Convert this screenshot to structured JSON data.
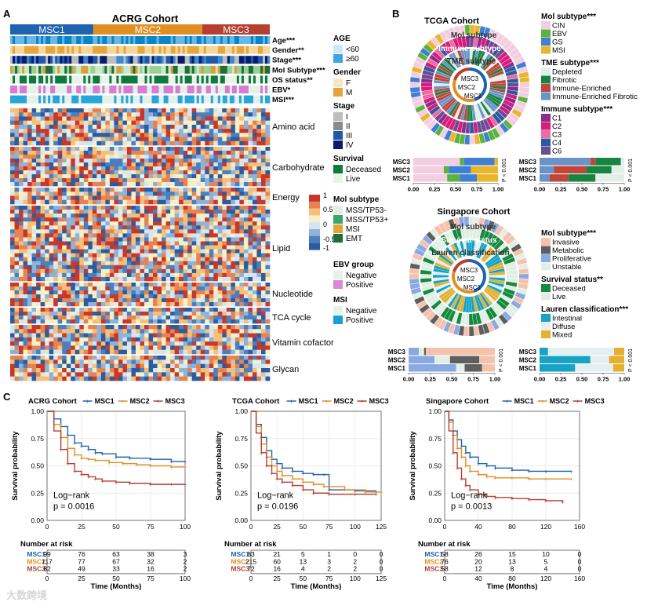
{
  "panels": {
    "a": "A",
    "b": "B",
    "c": "C"
  },
  "acrg": {
    "title": "ACRG Cohort",
    "clusters": [
      {
        "label": "MSC1",
        "share": 0.32,
        "color": "#1f62ad"
      },
      {
        "label": "MSC2",
        "share": 0.42,
        "color": "#e18f23"
      },
      {
        "label": "MSC3",
        "share": 0.26,
        "color": "#b73f2f"
      }
    ],
    "tracks": [
      {
        "label": "Age***",
        "colors": [
          "#0b84c6",
          "#69b7e6"
        ]
      },
      {
        "label": "Gender**",
        "colors": [
          "#f6d79b",
          "#e6a63a"
        ]
      },
      {
        "label": "Stage***",
        "colors": [
          "#bdbdbd",
          "#3b8ad0",
          "#1f5aa8",
          "#0a1a6b"
        ]
      },
      {
        "label": "Mol Subtype***",
        "colors": [
          "#cbe9c5",
          "#9bcf93",
          "#d8a03a",
          "#1f6e3a"
        ]
      },
      {
        "label": "OS status**",
        "colors": [
          "#0d7a3e",
          "#e8f4e7"
        ]
      },
      {
        "label": "EBV*",
        "colors": [
          "#e3f1e8",
          "#d87bd2"
        ]
      },
      {
        "label": "MSI***",
        "colors": [
          "#e3f1e8",
          "#27a6d9"
        ]
      }
    ],
    "blocks": [
      "Amino acid",
      "Carbohydrate",
      "Energy",
      "Lipid",
      "Nucleotide",
      "TCA cycle",
      "Vitamin cofactor",
      "Glycan"
    ],
    "scale": {
      "max": "1",
      "a": "0.5",
      "b": "0",
      "c": "-0.5",
      "min": "-1"
    },
    "legends": [
      {
        "title": "AGE",
        "items": [
          {
            "label": "<60",
            "color": "#cfe8f6"
          },
          {
            "label": "≥60",
            "color": "#3aa5e2"
          }
        ]
      },
      {
        "title": "Gender",
        "items": [
          {
            "label": "F",
            "color": "#f7e6c2"
          },
          {
            "label": "M",
            "color": "#e5a43a"
          }
        ]
      },
      {
        "title": "Stage",
        "items": [
          {
            "label": "I",
            "color": "#bdbdbd"
          },
          {
            "label": "II",
            "color": "#8a8a8a"
          },
          {
            "label": "III",
            "color": "#1f5aa8"
          },
          {
            "label": "IV",
            "color": "#0a1a6b"
          }
        ]
      },
      {
        "title": "Survival",
        "items": [
          {
            "label": "Deceased",
            "color": "#0d7a3e"
          },
          {
            "label": "Live",
            "color": "#e8f4e7"
          }
        ]
      },
      {
        "title": "Mol subtype",
        "items": [
          {
            "label": "MSS/TP53-",
            "color": "#dff0dc"
          },
          {
            "label": "MSS/TP53+",
            "color": "#3da56a"
          },
          {
            "label": "MSI",
            "color": "#e0a534"
          },
          {
            "label": "EMT",
            "color": "#1f6e3a"
          }
        ]
      },
      {
        "title": "EBV group",
        "items": [
          {
            "label": "Negative",
            "color": "#e6f2e6"
          },
          {
            "label": "Positive",
            "color": "#d98ad6"
          }
        ]
      },
      {
        "title": "MSI",
        "items": [
          {
            "label": "Negative",
            "color": "#e6f2e6"
          },
          {
            "label": "Positive",
            "color": "#1aa0d8"
          }
        ]
      }
    ]
  },
  "tcga": {
    "title": "TCGA Cohort",
    "ring_labels": [
      "Mol subtype",
      "Immune subtype",
      "TME subtype"
    ],
    "inner_labels": [
      "MSC3",
      "MSC2",
      "MSC1"
    ],
    "legends": [
      {
        "title": "Mol subtype***",
        "items": [
          {
            "label": "CIN",
            "color": "#f4cde0"
          },
          {
            "label": "EBV",
            "color": "#5ab33e"
          },
          {
            "label": "GS",
            "color": "#3f7fd6"
          },
          {
            "label": "MSI",
            "color": "#e9b52d"
          }
        ]
      },
      {
        "title": "TME subtype***",
        "items": [
          {
            "label": "Depleted",
            "color": "#e1efe6"
          },
          {
            "label": "Fibrotic",
            "color": "#17853f"
          },
          {
            "label": "Immune-Enriched",
            "color": "#c0453b"
          },
          {
            "label": "Immune-Enriched Fibrotic",
            "color": "#6c93c7"
          }
        ]
      },
      {
        "title": "Immune subtype***",
        "items": [
          {
            "label": "C1",
            "color": "#8b2d8f"
          },
          {
            "label": "C2",
            "color": "#d61d7c"
          },
          {
            "label": "C3",
            "color": "#ef6aa0"
          },
          {
            "label": "C4",
            "color": "#2b5aa0"
          },
          {
            "label": "C6",
            "color": "#6a4c93"
          }
        ]
      }
    ],
    "bars_left": {
      "rows": [
        "MSC3",
        "MSC2",
        "MSC1"
      ],
      "ticks": [
        "0.00",
        "0.25",
        "0.50",
        "0.75",
        "1.00"
      ],
      "p": "P < 0.001",
      "series": [
        {
          "name": "CIN",
          "color": "#f4cde0",
          "values": [
            0.55,
            0.36,
            0.4
          ]
        },
        {
          "name": "EBV",
          "color": "#5ab33e",
          "values": [
            0.05,
            0.06,
            0.15
          ]
        },
        {
          "name": "GS",
          "color": "#3f7fd6",
          "values": [
            0.36,
            0.26,
            0.2
          ]
        },
        {
          "name": "MSI",
          "color": "#e9b52d",
          "values": [
            0.04,
            0.32,
            0.25
          ]
        }
      ]
    },
    "bars_right": {
      "rows": [
        "MSC3",
        "MSC2",
        "MSC1"
      ],
      "ticks": [
        "0.00",
        "0.25",
        "0.50",
        "0.75",
        "1.00"
      ],
      "p": "P < 0.001",
      "series": [
        {
          "name": "Immune-Enriched Fibrotic",
          "color": "#6c93c7",
          "values": [
            0.6,
            0.17,
            0.12
          ]
        },
        {
          "name": "Immune-Enriched",
          "color": "#c0453b",
          "values": [
            0.06,
            0.38,
            0.22
          ]
        },
        {
          "name": "Fibrotic",
          "color": "#17853f",
          "values": [
            0.3,
            0.3,
            0.32
          ]
        },
        {
          "name": "Depleted",
          "color": "#e1efe6",
          "values": [
            0.04,
            0.15,
            0.34
          ]
        }
      ]
    }
  },
  "singapore": {
    "title": "Singapore Cohort",
    "ring_labels": [
      "Mol subtype",
      "Survival status",
      "Lauren classification"
    ],
    "inner_labels": [
      "MSC3",
      "MSC2",
      "MSC1"
    ],
    "legends": [
      {
        "title": "Mol subtype***",
        "items": [
          {
            "label": "Invasive",
            "color": "#f6c2ac"
          },
          {
            "label": "Metabolic",
            "color": "#5e5e5e"
          },
          {
            "label": "Proliferative",
            "color": "#8aa9e3"
          },
          {
            "label": "Unstable",
            "color": "#e2efe7"
          }
        ]
      },
      {
        "title": "Survival status**",
        "items": [
          {
            "label": "Deceased",
            "color": "#15893e"
          },
          {
            "label": "Live",
            "color": "#e0efe4"
          }
        ]
      },
      {
        "title": "Lauren classification***",
        "items": [
          {
            "label": "Intestinal",
            "color": "#16a3c4"
          },
          {
            "label": "Diffuse",
            "color": "#e4eff2"
          },
          {
            "label": "Mixed",
            "color": "#e4b02d"
          }
        ]
      }
    ],
    "bars_left": {
      "rows": [
        "MSC3",
        "MSC2",
        "MSC1"
      ],
      "ticks": [
        "0.00",
        "0.25",
        "0.50",
        "0.75",
        "1.00"
      ],
      "p": "P < 0.001",
      "series": [
        {
          "name": "Proliferative",
          "color": "#8aa9e3",
          "values": [
            0.12,
            0.3,
            0.55
          ]
        },
        {
          "name": "Unstable",
          "color": "#e2efe7",
          "values": [
            0.06,
            0.18,
            0.1
          ]
        },
        {
          "name": "Metabolic",
          "color": "#5e5e5e",
          "values": [
            0.02,
            0.34,
            0.2
          ]
        },
        {
          "name": "Invasive",
          "color": "#f6c2ac",
          "values": [
            0.8,
            0.18,
            0.15
          ]
        }
      ]
    },
    "bars_right": {
      "rows": [
        "MSC3",
        "MSC2",
        "MSC1"
      ],
      "ticks": [
        "0.00",
        "0.25",
        "0.50",
        "0.75",
        "1.00"
      ],
      "p": "P < 0.001",
      "series": [
        {
          "name": "Intestinal",
          "color": "#16a3c4",
          "values": [
            0.1,
            0.6,
            0.42
          ]
        },
        {
          "name": "Diffuse",
          "color": "#e4eff2",
          "values": [
            0.78,
            0.22,
            0.45
          ]
        },
        {
          "name": "Mixed",
          "color": "#e4b02d",
          "values": [
            0.12,
            0.18,
            0.13
          ]
        }
      ]
    }
  },
  "chart_data": [
    {
      "type": "line",
      "title": "ACRG Cohort",
      "xlabel": "Time (Months)",
      "ylabel": "Survival probability",
      "xlim": [
        0,
        100
      ],
      "ylim": [
        0,
        1
      ],
      "xticks": [
        "0",
        "25",
        "50",
        "75",
        "100"
      ],
      "yticks": [
        "0.00",
        "0.25",
        "0.50",
        "0.75",
        "1.00"
      ],
      "test": "Log−rank",
      "pvalue": "p = 0.0016",
      "risk_title": "Number at risk",
      "series": [
        {
          "name": "MSC1",
          "color": "#1f62ad",
          "x": [
            0,
            5,
            10,
            15,
            20,
            25,
            30,
            35,
            40,
            50,
            60,
            75,
            90,
            100
          ],
          "y": [
            1,
            0.93,
            0.86,
            0.78,
            0.71,
            0.68,
            0.65,
            0.62,
            0.61,
            0.58,
            0.57,
            0.56,
            0.54,
            0.54
          ],
          "risk": [
            "99",
            "76",
            "63",
            "38",
            "3"
          ]
        },
        {
          "name": "MSC2",
          "color": "#e18f23",
          "x": [
            0,
            5,
            10,
            15,
            20,
            25,
            30,
            35,
            45,
            55,
            65,
            75,
            90,
            100
          ],
          "y": [
            1,
            0.88,
            0.76,
            0.66,
            0.6,
            0.57,
            0.56,
            0.55,
            0.53,
            0.52,
            0.51,
            0.5,
            0.49,
            0.49
          ],
          "risk": [
            "117",
            "77",
            "67",
            "32",
            "2"
          ]
        },
        {
          "name": "MSC3",
          "color": "#b73f2f",
          "x": [
            0,
            5,
            10,
            15,
            20,
            25,
            30,
            35,
            40,
            50,
            60,
            75,
            90,
            100
          ],
          "y": [
            1,
            0.82,
            0.65,
            0.52,
            0.45,
            0.42,
            0.4,
            0.38,
            0.36,
            0.35,
            0.34,
            0.33,
            0.33,
            0.33
          ],
          "risk": [
            "82",
            "49",
            "33",
            "16",
            "2"
          ]
        }
      ],
      "risk_ticks": [
        "0",
        "25",
        "50",
        "75",
        "100"
      ]
    },
    {
      "type": "line",
      "title": "TCGA Cohort",
      "xlabel": "Time (Months)",
      "ylabel": "Survival probability",
      "xlim": [
        0,
        125
      ],
      "ylim": [
        0,
        1
      ],
      "xticks": [
        "0",
        "25",
        "50",
        "75",
        "100",
        "125"
      ],
      "yticks": [
        "0.00",
        "0.25",
        "0.50",
        "0.75",
        "1.00"
      ],
      "test": "Log−rank",
      "pvalue": "p = 0.0196",
      "risk_title": "Number at risk",
      "series": [
        {
          "name": "MSC1",
          "color": "#1f62ad",
          "x": [
            0,
            5,
            10,
            15,
            20,
            25,
            30,
            40,
            50,
            60,
            70,
            75,
            100,
            120
          ],
          "y": [
            1,
            0.88,
            0.76,
            0.64,
            0.56,
            0.52,
            0.48,
            0.45,
            0.43,
            0.42,
            0.42,
            0.28,
            0.27,
            0.26
          ],
          "risk": [
            "83",
            "21",
            "5",
            "1",
            "0",
            "0"
          ]
        },
        {
          "name": "MSC2",
          "color": "#e18f23",
          "x": [
            0,
            5,
            10,
            15,
            20,
            25,
            30,
            40,
            50,
            60,
            70,
            90,
            110,
            125
          ],
          "y": [
            1,
            0.86,
            0.7,
            0.58,
            0.5,
            0.45,
            0.41,
            0.38,
            0.35,
            0.33,
            0.31,
            0.28,
            0.26,
            0.26
          ],
          "risk": [
            "215",
            "60",
            "13",
            "3",
            "2",
            "0"
          ]
        },
        {
          "name": "MSC3",
          "color": "#b73f2f",
          "x": [
            0,
            5,
            10,
            15,
            20,
            25,
            30,
            40,
            50,
            60,
            75,
            100,
            120
          ],
          "y": [
            1,
            0.8,
            0.62,
            0.5,
            0.43,
            0.38,
            0.35,
            0.32,
            0.28,
            0.25,
            0.24,
            0.24,
            0.24
          ],
          "risk": [
            "72",
            "16",
            "4",
            "2",
            "2",
            "0"
          ]
        }
      ],
      "risk_ticks": [
        "0",
        "25",
        "50",
        "75",
        "100",
        "125"
      ]
    },
    {
      "type": "line",
      "title": "Singapore Cohort",
      "xlabel": "Time (Months)",
      "ylabel": "Survival probability",
      "xlim": [
        0,
        160
      ],
      "ylim": [
        0,
        1
      ],
      "xticks": [
        "0",
        "40",
        "80",
        "120",
        "160"
      ],
      "yticks": [
        "0.00",
        "0.25",
        "0.50",
        "0.75",
        "1.00"
      ],
      "test": "Log−rank",
      "pvalue": "p = 0.0013",
      "risk_title": "Number at risk",
      "series": [
        {
          "name": "MSC1",
          "color": "#1f62ad",
          "x": [
            0,
            5,
            10,
            15,
            20,
            25,
            30,
            40,
            50,
            60,
            80,
            100,
            120,
            150
          ],
          "y": [
            1,
            0.92,
            0.82,
            0.74,
            0.68,
            0.62,
            0.58,
            0.52,
            0.5,
            0.48,
            0.46,
            0.45,
            0.45,
            0.45
          ],
          "risk": [
            "58",
            "26",
            "15",
            "10",
            "0"
          ]
        },
        {
          "name": "MSC2",
          "color": "#e18f23",
          "x": [
            0,
            5,
            10,
            15,
            20,
            25,
            30,
            40,
            50,
            60,
            80,
            100,
            120,
            150
          ],
          "y": [
            1,
            0.9,
            0.78,
            0.66,
            0.58,
            0.5,
            0.45,
            0.42,
            0.4,
            0.39,
            0.39,
            0.38,
            0.38,
            0.38
          ],
          "risk": [
            "76",
            "20",
            "13",
            "5",
            "0"
          ]
        },
        {
          "name": "MSC3",
          "color": "#b73f2f",
          "x": [
            0,
            5,
            10,
            15,
            20,
            25,
            30,
            40,
            50,
            60,
            80,
            100,
            120,
            140
          ],
          "y": [
            1,
            0.82,
            0.62,
            0.48,
            0.38,
            0.32,
            0.28,
            0.24,
            0.22,
            0.21,
            0.2,
            0.19,
            0.18,
            0.17
          ],
          "risk": [
            "58",
            "12",
            "8",
            "4",
            "0"
          ]
        }
      ],
      "risk_ticks": [
        "0",
        "40",
        "80",
        "120",
        "160"
      ]
    }
  ],
  "watermark": "大数跨境"
}
